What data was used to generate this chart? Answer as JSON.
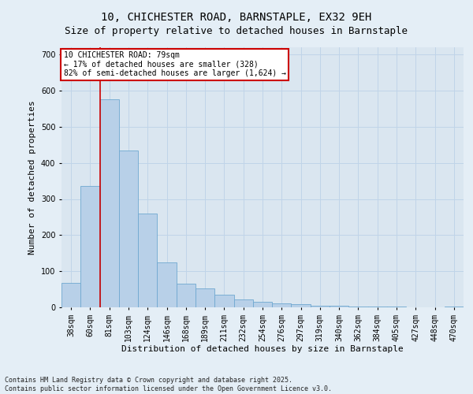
{
  "title": "10, CHICHESTER ROAD, BARNSTAPLE, EX32 9EH",
  "subtitle": "Size of property relative to detached houses in Barnstaple",
  "xlabel": "Distribution of detached houses by size in Barnstaple",
  "ylabel": "Number of detached properties",
  "bins": [
    "38sqm",
    "60sqm",
    "81sqm",
    "103sqm",
    "124sqm",
    "146sqm",
    "168sqm",
    "189sqm",
    "211sqm",
    "232sqm",
    "254sqm",
    "276sqm",
    "297sqm",
    "319sqm",
    "340sqm",
    "362sqm",
    "384sqm",
    "405sqm",
    "427sqm",
    "448sqm",
    "470sqm"
  ],
  "values": [
    68,
    335,
    575,
    435,
    260,
    125,
    65,
    52,
    35,
    22,
    15,
    10,
    8,
    5,
    4,
    3,
    2,
    2,
    1,
    1,
    2
  ],
  "bar_color": "#b8d0e8",
  "bar_edge_color": "#6fa8d0",
  "annotation_text_line1": "10 CHICHESTER ROAD: 79sqm",
  "annotation_text_line2": "← 17% of detached houses are smaller (328)",
  "annotation_text_line3": "82% of semi-detached houses are larger (1,624) →",
  "annotation_box_facecolor": "#ffffff",
  "annotation_box_edgecolor": "#cc0000",
  "vline_x": 1.5,
  "vline_color": "#cc0000",
  "grid_color": "#c0d4e8",
  "ax_facecolor": "#dae6f0",
  "fig_facecolor": "#e4eef6",
  "footnote": "Contains HM Land Registry data © Crown copyright and database right 2025.\nContains public sector information licensed under the Open Government Licence v3.0.",
  "ylim": [
    0,
    720
  ],
  "yticks": [
    0,
    100,
    200,
    300,
    400,
    500,
    600,
    700
  ],
  "title_fontsize": 10,
  "subtitle_fontsize": 9,
  "ylabel_fontsize": 8,
  "xlabel_fontsize": 8,
  "tick_fontsize": 7,
  "footnote_fontsize": 6
}
